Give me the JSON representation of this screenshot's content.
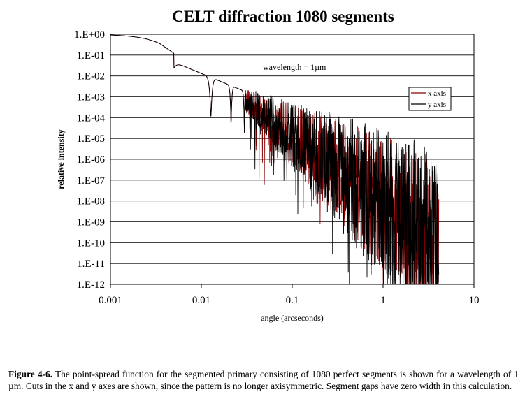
{
  "chart_data": {
    "type": "line",
    "title": "CELT diffraction 1080 segments",
    "xlabel": "angle (arcseconds)",
    "ylabel": "relative intensity",
    "x_scale": "log",
    "y_scale": "log",
    "xlim": [
      0.001,
      10
    ],
    "ylim": [
      1e-12,
      1
    ],
    "x_ticks": [
      "0.001",
      "0.01",
      "0.1",
      "1",
      "10"
    ],
    "y_ticks": [
      "1.E+00",
      "1.E-01",
      "1.E-02",
      "1.E-03",
      "1.E-04",
      "1.E-05",
      "1.E-06",
      "1.E-07",
      "1.E-08",
      "1.E-09",
      "1.E-10",
      "1.E-11",
      "1.E-12"
    ],
    "grid": "horizontal",
    "legend_position": "right",
    "annotation": "wavelength = 1µm",
    "series": [
      {
        "name": "x axis",
        "color": "#8b0000",
        "x_max": 4.1
      },
      {
        "name": "y axis",
        "color": "#000000",
        "x_max": 4.1
      }
    ]
  },
  "caption": {
    "label": "Figure 4-6.",
    "text": " The point-spread function for the segmented primary consisting of 1080 perfect segments is shown for a wavelength of 1 µm.  Cuts in the x and y axes are shown, since the pattern is no longer axisymmetric. Segment gaps have zero width in this calculation."
  }
}
